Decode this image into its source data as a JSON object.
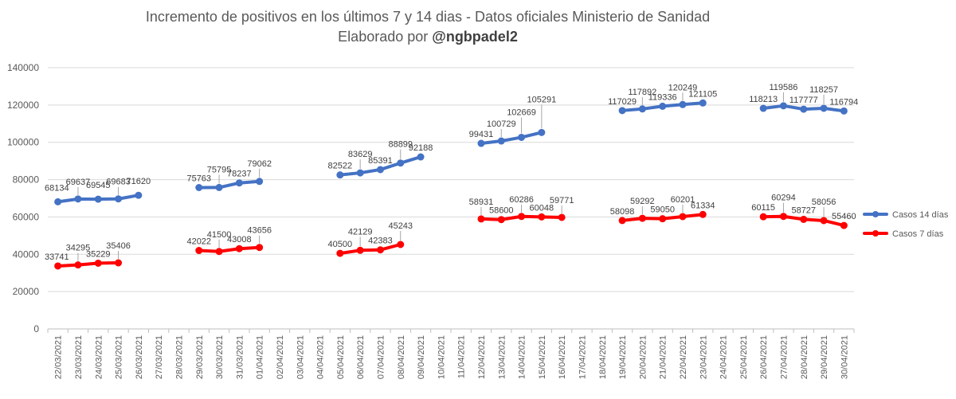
{
  "chart_data": {
    "type": "line",
    "title_line1": "Incremento de positivos en los últimos 7 y 14 dias - Datos oficiales Ministerio de Sanidad",
    "title_line2_prefix": "Elaborado por ",
    "title_line2_bold": "@ngbpadel2",
    "xlabel": "",
    "ylabel": "",
    "ylim": [
      0,
      140000
    ],
    "yticks": [
      0,
      20000,
      40000,
      60000,
      80000,
      100000,
      120000,
      140000
    ],
    "grid": true,
    "legend_position": "right",
    "categories": [
      "22/03/2021",
      "23/03/2021",
      "24/03/2021",
      "25/03/2021",
      "26/03/2021",
      "27/03/2021",
      "28/03/2021",
      "29/03/2021",
      "30/03/2021",
      "31/03/2021",
      "01/04/2021",
      "02/04/2021",
      "03/04/2021",
      "04/04/2021",
      "05/04/2021",
      "06/04/2021",
      "07/04/2021",
      "08/04/2021",
      "09/04/2021",
      "10/04/2021",
      "11/04/2021",
      "12/04/2021",
      "13/04/2021",
      "14/04/2021",
      "15/04/2021",
      "16/04/2021",
      "17/04/2021",
      "18/04/2021",
      "19/04/2021",
      "20/04/2021",
      "21/04/2021",
      "22/04/2021",
      "23/04/2021",
      "24/04/2021",
      "25/04/2021",
      "26/04/2021",
      "27/04/2021",
      "28/04/2021",
      "29/04/2021",
      "30/04/2021"
    ],
    "series": [
      {
        "name": "Casos 14 días",
        "color": "#4472C4",
        "values": [
          68134,
          69637,
          69545,
          69683,
          71620,
          null,
          null,
          75763,
          75795,
          78237,
          79062,
          null,
          null,
          null,
          82522,
          83629,
          85391,
          88899,
          92188,
          null,
          null,
          99431,
          100729,
          102669,
          105291,
          null,
          null,
          null,
          117029,
          117892,
          119336,
          120249,
          121105,
          null,
          null,
          118213,
          119586,
          117777,
          118257,
          116794
        ]
      },
      {
        "name": "Casos 7 días",
        "color": "#FF0000",
        "values": [
          33741,
          34295,
          35229,
          35406,
          null,
          null,
          null,
          42022,
          41500,
          43008,
          43656,
          null,
          null,
          null,
          40500,
          42129,
          42383,
          45243,
          null,
          null,
          null,
          58931,
          58600,
          60286,
          60048,
          59771,
          null,
          null,
          58098,
          59292,
          59050,
          60201,
          61334,
          null,
          null,
          60115,
          60294,
          58727,
          58056,
          55460
        ]
      }
    ]
  }
}
